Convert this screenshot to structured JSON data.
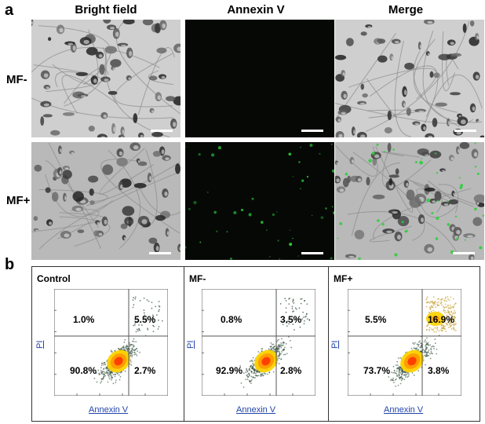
{
  "figure": {
    "panel_a": {
      "letter": "a",
      "columns": [
        "Bright field",
        "Annexin V",
        "Merge"
      ],
      "rows": [
        "MF-",
        "MF+"
      ]
    },
    "panel_b": {
      "letter": "b",
      "panels": [
        {
          "title": "Control",
          "q_ul": "1.0%",
          "q_ur": "5.5%",
          "q_ll": "90.8%",
          "q_lr": "2.7%"
        },
        {
          "title": "MF-",
          "q_ul": "0.8%",
          "q_ur": "3.5%",
          "q_ll": "92.9%",
          "q_lr": "2.8%"
        },
        {
          "title": "MF+",
          "q_ul": "5.5%",
          "q_ur": "16.9%",
          "q_ll": "73.7%",
          "q_lr": "3.8%"
        }
      ],
      "xlabel": "Annexin V",
      "ylabel": "PI"
    }
  },
  "colors": {
    "fluor": "#2bcf3a",
    "dark_bg": "#060806",
    "gray_bg": "#c8c8c8",
    "axis_text": "#2244aa"
  }
}
